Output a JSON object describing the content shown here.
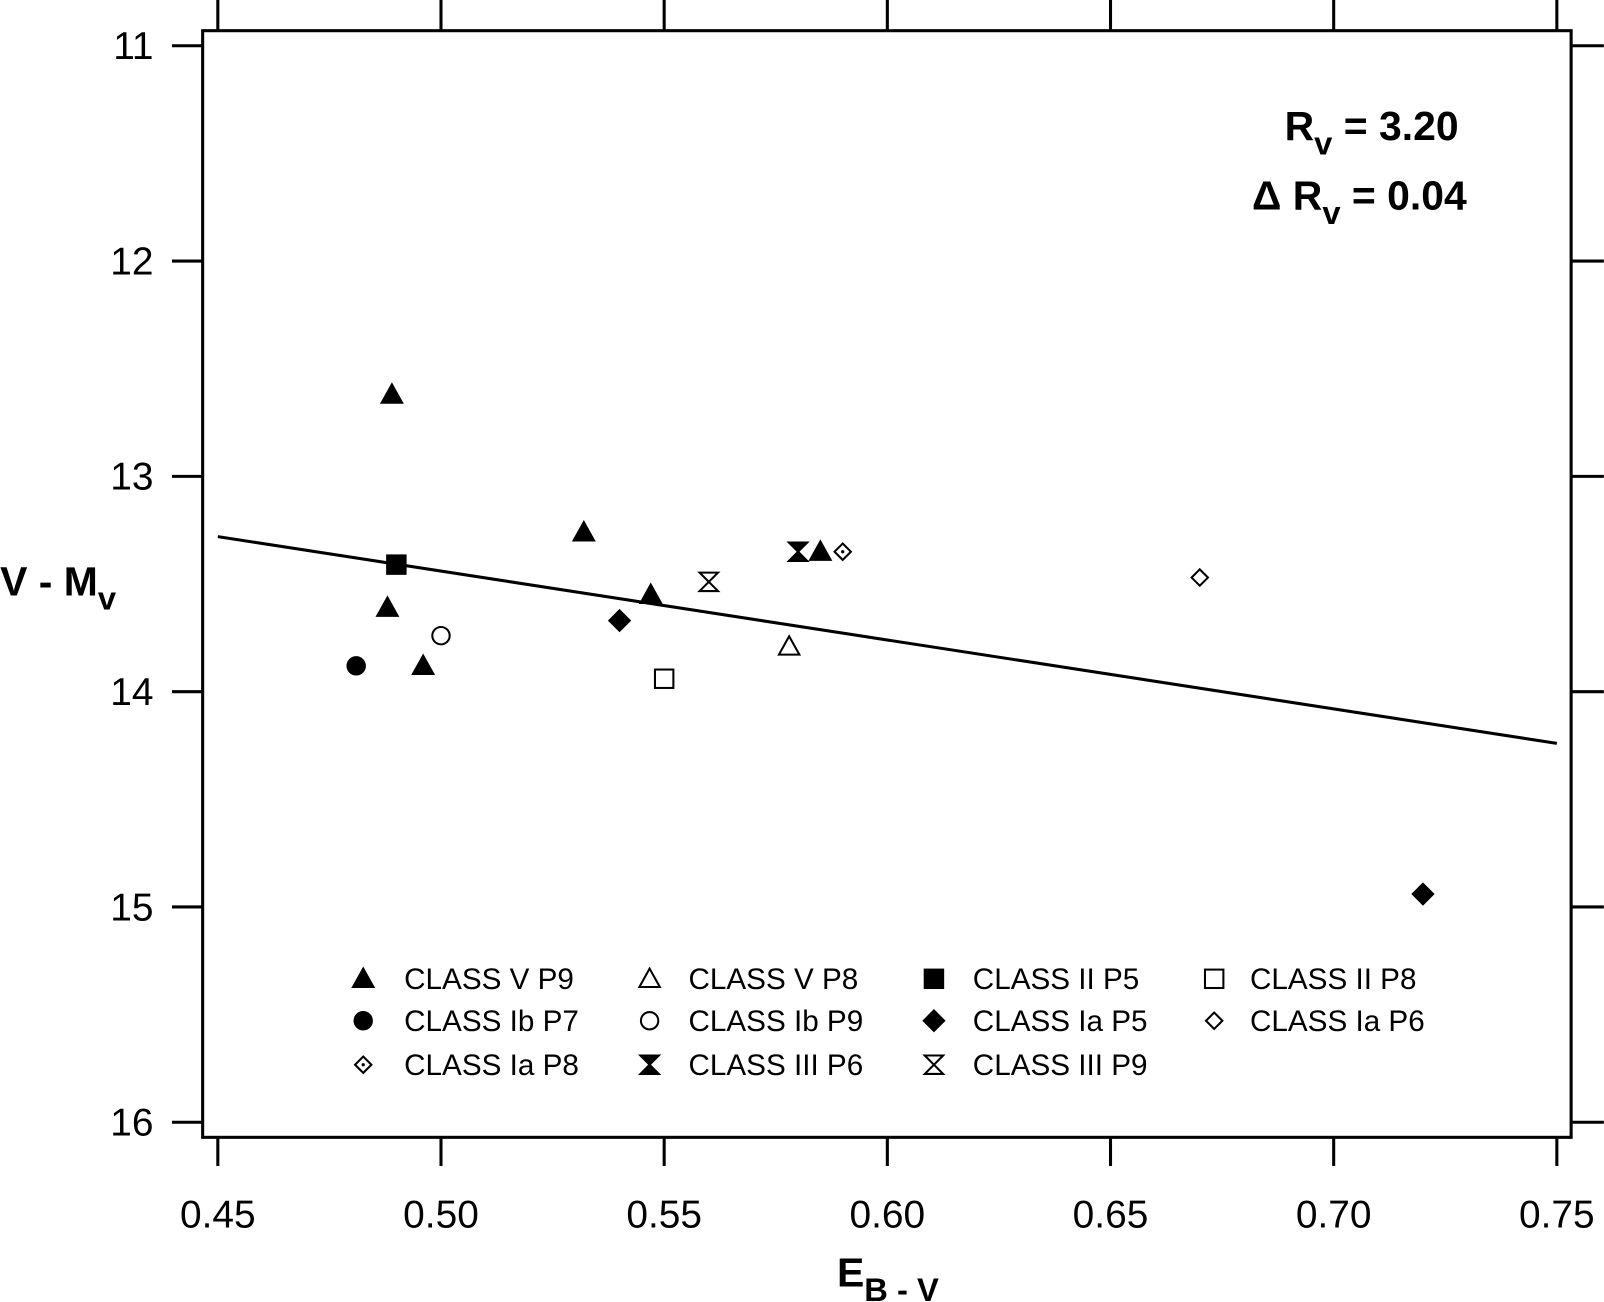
{
  "chart_data": {
    "type": "scatter",
    "xlabel": [
      {
        "text": "E"
      },
      {
        "text": "B - V",
        "sub": true
      }
    ],
    "ylabel": [
      {
        "text": "V - M"
      },
      {
        "text": "v",
        "sub": true
      }
    ],
    "xlim": [
      0.4466,
      0.7532
    ],
    "ylim": [
      10.93,
      16.07
    ],
    "y_inverted": true,
    "xticks": [
      {
        "value": 0.45,
        "label": "0.45"
      },
      {
        "value": 0.5,
        "label": "0.50"
      },
      {
        "value": 0.55,
        "label": "0.55"
      },
      {
        "value": 0.6,
        "label": "0.60"
      },
      {
        "value": 0.65,
        "label": "0.65"
      },
      {
        "value": 0.7,
        "label": "0.70"
      },
      {
        "value": 0.75,
        "label": "0.75"
      }
    ],
    "yticks": [
      11,
      12,
      13,
      14,
      15,
      16
    ],
    "grid": false,
    "annotations": [
      [
        {
          "text": "R"
        },
        {
          "text": "v",
          "sub": true
        },
        {
          "text": " = 3.20"
        }
      ],
      [
        {
          "text": "Δ "
        },
        {
          "text": "R"
        },
        {
          "text": "v",
          "sub": true
        },
        {
          "text": " = 0.04"
        }
      ]
    ],
    "fit_line": {
      "x": [
        0.45,
        0.75
      ],
      "y": [
        13.28,
        14.24
      ],
      "color": "#000000"
    },
    "series": [
      {
        "name": "CLASS V P9",
        "marker": "triangle",
        "color": "#000000",
        "x": [
          0.489,
          0.532,
          0.488,
          0.496,
          0.547,
          0.585
        ],
        "y": [
          12.62,
          13.26,
          13.61,
          13.88,
          13.55,
          13.35
        ]
      },
      {
        "name": "CLASS V P8",
        "marker": "triangle-open",
        "color": "#000000",
        "x": [
          0.578
        ],
        "y": [
          13.79
        ]
      },
      {
        "name": "CLASS II P5",
        "marker": "square",
        "color": "#000000",
        "x": [
          0.49
        ],
        "y": [
          13.41
        ]
      },
      {
        "name": "CLASS II P8",
        "marker": "square-open",
        "color": "#000000",
        "x": [
          0.55
        ],
        "y": [
          13.94
        ]
      },
      {
        "name": "CLASS Ib P7",
        "marker": "circle",
        "color": "#000000",
        "x": [
          0.481
        ],
        "y": [
          13.88
        ]
      },
      {
        "name": "CLASS Ib P9",
        "marker": "circle-open",
        "color": "#000000",
        "x": [
          0.5
        ],
        "y": [
          13.74
        ]
      },
      {
        "name": "CLASS Ia P5",
        "marker": "diamond",
        "color": "#000000",
        "x": [
          0.54,
          0.72
        ],
        "y": [
          13.67,
          14.94
        ]
      },
      {
        "name": "CLASS Ia P6",
        "marker": "diamond-open",
        "color": "#000000",
        "x": [
          0.67
        ],
        "y": [
          13.47
        ]
      },
      {
        "name": "CLASS Ia P8",
        "marker": "diamond-dot",
        "color": "#000000",
        "x": [
          0.59
        ],
        "y": [
          13.35
        ]
      },
      {
        "name": "CLASS III P6",
        "marker": "hourglass",
        "color": "#000000",
        "x": [
          0.58
        ],
        "y": [
          13.35
        ]
      },
      {
        "name": "CLASS III P9",
        "marker": "hourglass-open",
        "color": "#000000",
        "x": [
          0.56
        ],
        "y": [
          13.49
        ]
      }
    ]
  }
}
